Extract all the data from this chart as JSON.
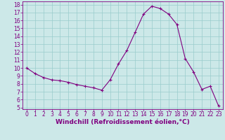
{
  "x": [
    0,
    1,
    2,
    3,
    4,
    5,
    6,
    7,
    8,
    9,
    10,
    11,
    12,
    13,
    14,
    15,
    16,
    17,
    18,
    19,
    20,
    21,
    22,
    23
  ],
  "y": [
    10.0,
    9.3,
    8.8,
    8.5,
    8.4,
    8.2,
    7.9,
    7.7,
    7.5,
    7.2,
    8.5,
    10.5,
    12.2,
    14.5,
    16.8,
    17.8,
    17.5,
    16.8,
    15.5,
    11.2,
    9.5,
    7.3,
    7.7,
    5.2
  ],
  "xlabel": "Windchill (Refroidissement éolien,°C)",
  "xlim": [
    -0.5,
    23.5
  ],
  "ylim": [
    4.8,
    18.4
  ],
  "yticks": [
    5,
    6,
    7,
    8,
    9,
    10,
    11,
    12,
    13,
    14,
    15,
    16,
    17,
    18
  ],
  "xticks": [
    0,
    1,
    2,
    3,
    4,
    5,
    6,
    7,
    8,
    9,
    10,
    11,
    12,
    13,
    14,
    15,
    16,
    17,
    18,
    19,
    20,
    21,
    22,
    23
  ],
  "line_color": "#800080",
  "marker": "+",
  "marker_size": 3,
  "bg_color": "#cce8e8",
  "grid_color": "#99cccc",
  "xlabel_color": "#800080",
  "tick_color": "#800080",
  "spine_color": "#800080",
  "tick_fontsize": 5.5,
  "xlabel_fontsize": 6.5
}
